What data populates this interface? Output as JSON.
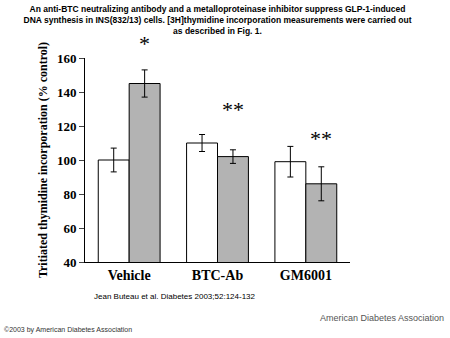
{
  "chart_data": {
    "type": "bar",
    "title": [
      "An anti-BTC neutralizing antibody and a metalloproteinase inhibitor suppress GLP-1-induced",
      "DNA synthesis in INS(832/13) cells. [3H]thymidine incorporation measurements were carried out",
      "as described in Fig. 1."
    ],
    "ylabel": "Tritiated thymidine incorporation (% control)",
    "categories": [
      "Vehicle",
      "BTC-Ab",
      "GM6001"
    ],
    "series": [
      {
        "color": "#ffffff",
        "values": [
          100,
          110,
          99
        ],
        "errors": [
          7,
          5,
          9
        ]
      },
      {
        "color": "#b3b3b3",
        "values": [
          145,
          102,
          86
        ],
        "errors": [
          8,
          4,
          10
        ]
      }
    ],
    "ylim": [
      40,
      160
    ],
    "yticks": [
      40,
      60,
      80,
      100,
      120,
      140,
      160
    ],
    "grid": false,
    "annotations": [
      {
        "text": "*",
        "category": "Vehicle",
        "series": 1,
        "y": 160
      },
      {
        "text": "**",
        "category": "BTC-Ab",
        "series": 1,
        "y": 121
      },
      {
        "text": "**",
        "category": "GM6001",
        "series": 1,
        "y": 104
      }
    ],
    "source": "Jean Buteau et al. Diabetes 2003;52:124-132",
    "copyright": "©2003 by American Diabetes Association",
    "publisher": "American Diabetes Association"
  }
}
